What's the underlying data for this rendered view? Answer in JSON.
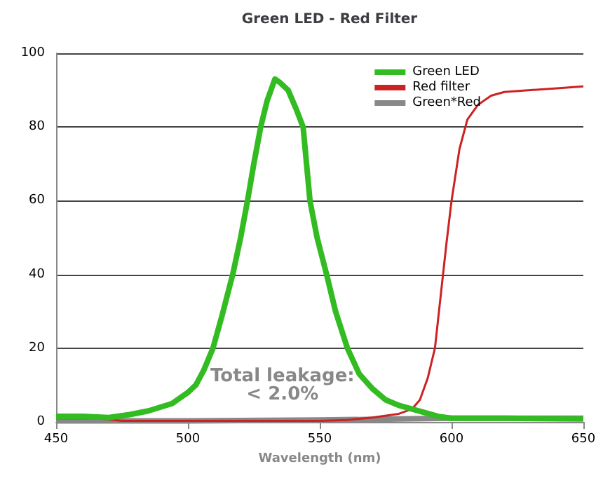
{
  "chart_data": {
    "type": "line",
    "title": "Green LED - Red Filter",
    "xlabel": "Wavelength (nm)",
    "xlim": [
      450,
      650
    ],
    "xticks": [
      450,
      500,
      550,
      600,
      650
    ],
    "ylim": [
      0,
      100
    ],
    "yticks": [
      0,
      20,
      40,
      60,
      80,
      100
    ],
    "grid": "y",
    "legend": "top right",
    "marker": "none",
    "annotations": [
      "Total leakage:\n< 2.0%"
    ],
    "series": [
      {
        "name": "Green LED",
        "color": "#33bb22",
        "x": [
          450,
          460,
          470,
          478,
          485,
          494,
          500,
          503,
          506,
          509.5,
          513,
          517,
          520,
          522.6,
          525,
          527.6,
          530,
          533,
          535,
          538,
          541,
          543.7,
          545,
          546.3,
          549,
          552.6,
          556,
          560.5,
          565,
          570,
          575,
          580,
          585,
          590,
          595,
          600,
          620,
          650
        ],
        "values": [
          1.5,
          1.5,
          1.2,
          2,
          3,
          5,
          8,
          10,
          14,
          20,
          29,
          40,
          50,
          60,
          70,
          80,
          87,
          93,
          92,
          90,
          85,
          80,
          70,
          60,
          50,
          40,
          30,
          20,
          13,
          9,
          6,
          4.5,
          3.5,
          2.5,
          1.5,
          1,
          1,
          0.8
        ]
      },
      {
        "name": "Red filter",
        "color": "#cc2222",
        "x": [
          450,
          465,
          475,
          500,
          550,
          560,
          570,
          580,
          585,
          588,
          591,
          593.7,
          596,
          598,
          600,
          603,
          606,
          610,
          615,
          620,
          630,
          640,
          650
        ],
        "values": [
          1,
          1,
          0.3,
          0.3,
          0.3,
          0.5,
          1.2,
          2.2,
          3.5,
          6,
          12,
          20,
          35,
          48,
          60,
          74,
          82,
          86,
          88.5,
          89.5,
          90,
          90.5,
          91
        ]
      },
      {
        "name": "Green*Red",
        "color": "#888888",
        "x": [
          450,
          500,
          550,
          580,
          600,
          650
        ],
        "values": [
          0.3,
          0.3,
          0.5,
          0.8,
          1,
          1
        ]
      }
    ]
  }
}
